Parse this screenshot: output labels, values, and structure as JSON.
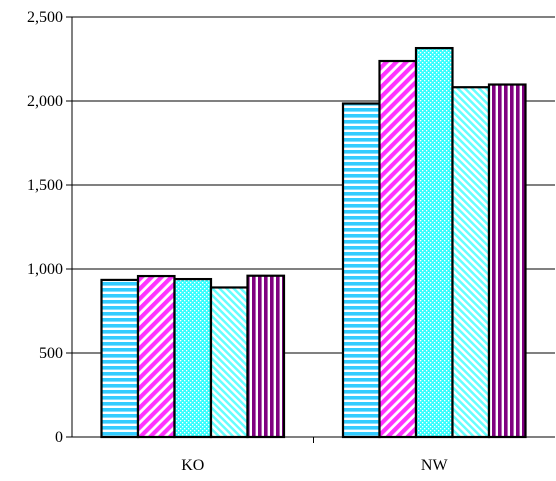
{
  "chart_data": {
    "type": "bar",
    "categories": [
      "KO",
      "NW"
    ],
    "series": [
      {
        "values": [
          935,
          1985
        ],
        "color": "#33ccff",
        "pattern": "horizontal-stripes"
      },
      {
        "values": [
          958,
          2238
        ],
        "color": "#ff33ff",
        "pattern": "diagonal-stripes"
      },
      {
        "values": [
          940,
          2315
        ],
        "color": "#33ffff",
        "pattern": "dots"
      },
      {
        "values": [
          890,
          2082
        ],
        "color": "#66ffff",
        "pattern": "back-diagonal-stripes"
      },
      {
        "values": [
          960,
          2098
        ],
        "color": "#800080",
        "pattern": "vertical-stripes"
      }
    ],
    "ylim": [
      0,
      2500
    ],
    "yticks": [
      0,
      500,
      1000,
      1500,
      2000,
      2500
    ],
    "ytick_labels": [
      "0",
      "500",
      "1,000",
      "1,500",
      "2,000",
      "2,500"
    ],
    "grid": "horizontal",
    "title": "",
    "xlabel": "",
    "ylabel": ""
  }
}
